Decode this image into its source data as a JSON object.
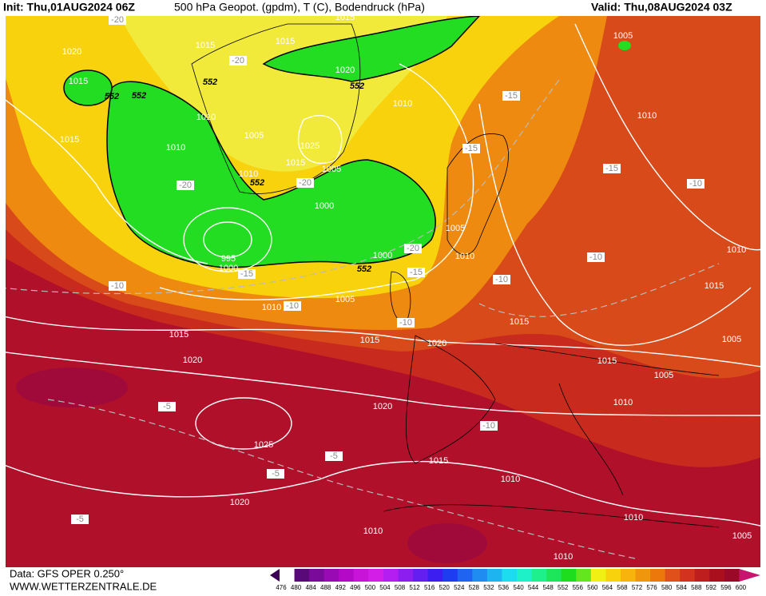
{
  "header": {
    "init": "Init: Thu,01AUG2024 06Z",
    "title": "500 hPa Geopot. (gpdm), T (C), Bodendruck (hPa)",
    "valid": "Valid: Thu,08AUG2024 03Z"
  },
  "footer": {
    "source": "Data: GFS OPER 0.250°",
    "site": "WWW.WETTERZENTRALE.DE"
  },
  "colorbar": {
    "labels": [
      476,
      480,
      484,
      488,
      492,
      496,
      500,
      504,
      508,
      512,
      516,
      520,
      524,
      528,
      532,
      536,
      540,
      544,
      548,
      552,
      556,
      560,
      564,
      568,
      572,
      576,
      580,
      584,
      588,
      592,
      596,
      600
    ],
    "colors": [
      "#3c0050",
      "#5a0a78",
      "#7a0a9a",
      "#9a0ab4",
      "#b40ac8",
      "#c814d8",
      "#d21ee6",
      "#b41ef0",
      "#8c1ef0",
      "#641ef0",
      "#3c1ef0",
      "#1e3cf0",
      "#1e64f0",
      "#1e8cf0",
      "#1eb4f0",
      "#1edcf0",
      "#1ef0c8",
      "#1ef08c",
      "#1ee65a",
      "#1edc1e",
      "#64e61e",
      "#f0f014",
      "#f8d20c",
      "#f8b40c",
      "#f0960c",
      "#ec780c",
      "#e0501a",
      "#d2321e",
      "#be1e1e",
      "#aa0f1e",
      "#9a0a28",
      "#c8146e"
    ]
  },
  "map_labels": {
    "isobars": [
      "1015",
      "1015",
      "1015",
      "1020",
      "1015",
      "1020",
      "1010",
      "1005",
      "1010",
      "1010",
      "1005",
      "1025",
      "1015",
      "1005",
      "1010",
      "1015",
      "1010",
      "1000",
      "1005",
      "1010",
      "1000",
      "995",
      "1000",
      "1010",
      "1005",
      "1015",
      "1015",
      "1020",
      "1015",
      "1015",
      "1010",
      "1015",
      "1005",
      "1005",
      "1010",
      "1020",
      "1020",
      "1025",
      "1015",
      "1010",
      "1020",
      "1010",
      "1010",
      "1005",
      "1010"
    ],
    "temperatures": [
      "-20",
      "-20",
      "-15",
      "-15",
      "-15",
      "-10",
      "-20",
      "-20",
      "-20",
      "-15",
      "-15",
      "-10",
      "-10",
      "-10",
      "-10",
      "-10",
      "-5",
      "-10",
      "-5",
      "-5",
      "-5"
    ],
    "heights": [
      "552",
      "552",
      "552",
      "552",
      "552",
      "552"
    ]
  }
}
